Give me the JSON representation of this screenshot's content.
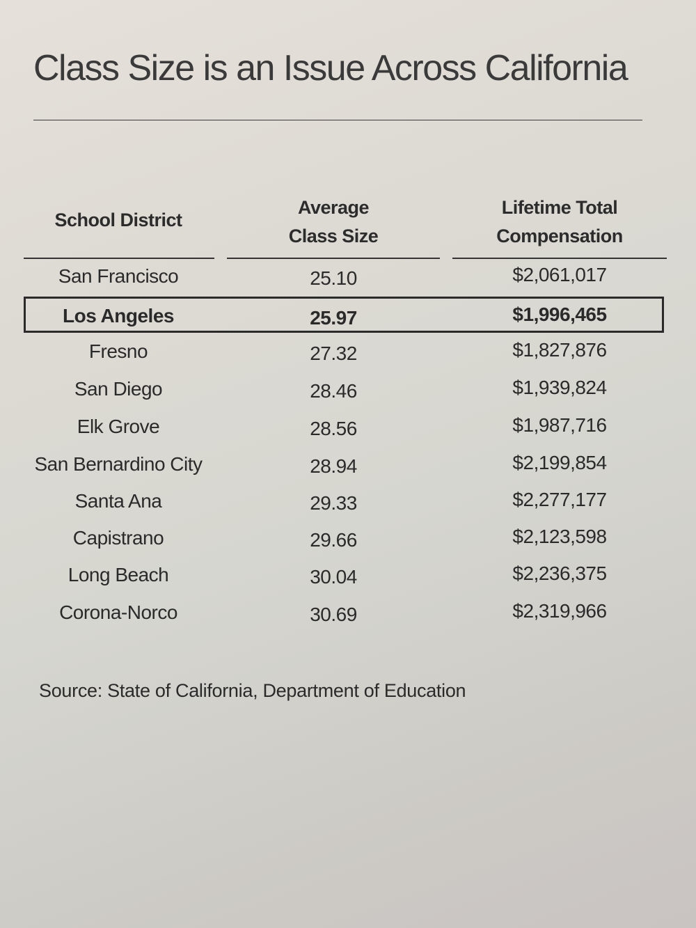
{
  "title": "Class Size is an Issue Across California",
  "table": {
    "headers": {
      "district": "School District",
      "class_size_line1": "Average",
      "class_size_line2": "Class Size",
      "comp_line1": "Lifetime Total",
      "comp_line2": "Compensation"
    },
    "rows": [
      {
        "district": "San Francisco",
        "class_size": "25.10",
        "compensation": "$2,061,017",
        "highlighted": false
      },
      {
        "district": "Los Angeles",
        "class_size": "25.97",
        "compensation": "$1,996,465",
        "highlighted": true
      },
      {
        "district": "Fresno",
        "class_size": "27.32",
        "compensation": "$1,827,876",
        "highlighted": false
      },
      {
        "district": "San Diego",
        "class_size": "28.46",
        "compensation": "$1,939,824",
        "highlighted": false
      },
      {
        "district": "Elk Grove",
        "class_size": "28.56",
        "compensation": "$1,987,716",
        "highlighted": false
      },
      {
        "district": "San Bernardino City",
        "class_size": "28.94",
        "compensation": "$2,199,854",
        "highlighted": false
      },
      {
        "district": "Santa Ana",
        "class_size": "29.33",
        "compensation": "$2,277,177",
        "highlighted": false
      },
      {
        "district": "Capistrano",
        "class_size": "29.66",
        "compensation": "$2,123,598",
        "highlighted": false
      },
      {
        "district": "Long Beach",
        "class_size": "30.04",
        "compensation": "$2,236,375",
        "highlighted": false
      },
      {
        "district": "Corona-Norco",
        "class_size": "30.69",
        "compensation": "$2,319,966",
        "highlighted": false
      }
    ]
  },
  "source": "Source: State of California, Department of Education",
  "colors": {
    "text": "#2a2a2a",
    "paper": "#dcd9d2",
    "highlight_border": "#2a2a2a"
  }
}
